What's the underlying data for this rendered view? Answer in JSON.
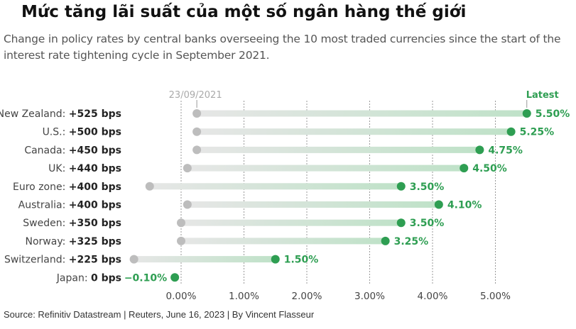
{
  "title": "Mức tăng lãi suất của một số ngân hàng thế giới",
  "subtitle": "Change in policy rates by central banks overseeing the 10 most traded currencies since the start of the interest rate tightening cycle in September 2021.",
  "source": "Source: Refinitiv Datastream | Reuters, June 16, 2023 | By Vincent Flasseur",
  "chart_data": {
    "type": "dumbbell",
    "start_label": "23/09/2021",
    "end_label": "Latest",
    "xlim": [
      -0.85,
      5.95
    ],
    "xticks": [
      0,
      1,
      2,
      3,
      4,
      5
    ],
    "xtick_labels": [
      "0.00%",
      "1.00%",
      "2.00%",
      "3.00%",
      "4.00%",
      "5.00%"
    ],
    "grid": true,
    "colors": {
      "start": "#bdbdbd",
      "end": "#2e9e52",
      "end_text": "#2e9e52",
      "grid": "#999999"
    },
    "rows": [
      {
        "country": "New Zealand",
        "change": "+525 bps",
        "start": 0.25,
        "end": 5.5,
        "end_label": "5.50%"
      },
      {
        "country": "U.S.",
        "change": "+500 bps",
        "start": 0.25,
        "end": 5.25,
        "end_label": "5.25%"
      },
      {
        "country": "Canada",
        "change": "+450 bps",
        "start": 0.25,
        "end": 4.75,
        "end_label": "4.75%"
      },
      {
        "country": "UK",
        "change": "+440 bps",
        "start": 0.1,
        "end": 4.5,
        "end_label": "4.50%"
      },
      {
        "country": "Euro zone",
        "change": "+400 bps",
        "start": -0.5,
        "end": 3.5,
        "end_label": "3.50%"
      },
      {
        "country": "Australia",
        "change": "+400 bps",
        "start": 0.1,
        "end": 4.1,
        "end_label": "4.10%"
      },
      {
        "country": "Sweden",
        "change": "+350 bps",
        "start": 0.0,
        "end": 3.5,
        "end_label": "3.50%"
      },
      {
        "country": "Norway",
        "change": "+325 bps",
        "start": 0.0,
        "end": 3.25,
        "end_label": "3.25%"
      },
      {
        "country": "Switzerland",
        "change": "+225 bps",
        "start": -0.75,
        "end": 1.5,
        "end_label": "1.50%"
      },
      {
        "country": "Japan",
        "change": "0 bps",
        "start": -0.1,
        "end": -0.1,
        "end_label": "−0.10%"
      }
    ]
  }
}
